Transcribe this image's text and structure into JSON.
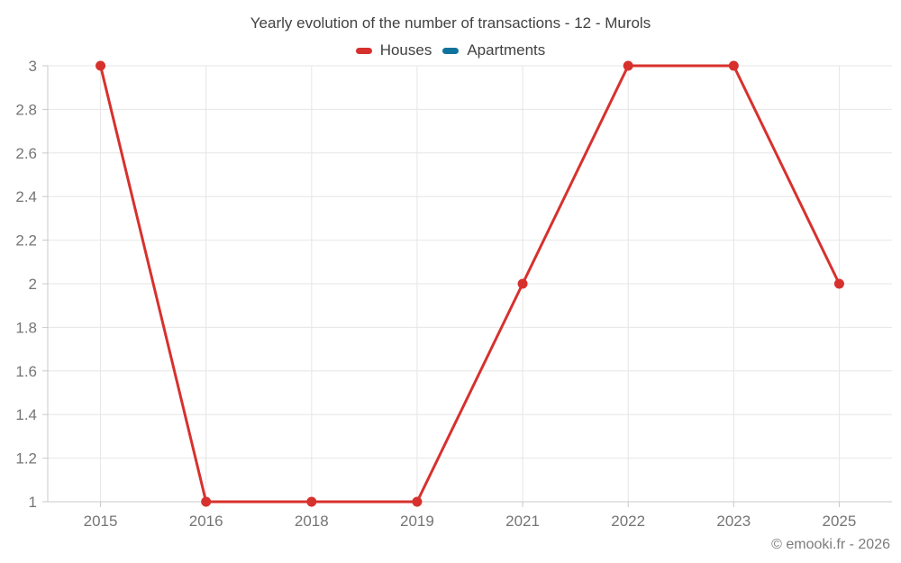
{
  "page": {
    "background": "#ffffff"
  },
  "colors": {
    "grid": "#e6e6e6",
    "axis": "#c9c9c9",
    "tick_text": "#757575",
    "title_text": "#424242",
    "legend_text": "#424242",
    "copyright_text": "#7c7c7c"
  },
  "chart_data": {
    "type": "line",
    "title": "Yearly evolution of the number of transactions - 12 - Murols",
    "categories": [
      "2015",
      "2016",
      "2018",
      "2019",
      "2021",
      "2022",
      "2023",
      "2025"
    ],
    "series": [
      {
        "name": "Houses",
        "color": "#d7312e",
        "values": [
          3,
          1,
          1,
          1,
          2,
          3,
          3,
          2
        ]
      },
      {
        "name": "Apartments",
        "color": "#10739e",
        "values": []
      }
    ],
    "ylim": [
      1,
      3
    ],
    "ytick_step": 0.2,
    "ytick_labels": [
      "1",
      "1.2",
      "1.4",
      "1.6",
      "1.8",
      "2",
      "2.2",
      "2.4",
      "2.6",
      "2.8",
      "3"
    ],
    "xlabel": "",
    "ylabel": "",
    "grid": true,
    "legend_position": "top",
    "copyright": "© emooki.fr - 2026"
  }
}
